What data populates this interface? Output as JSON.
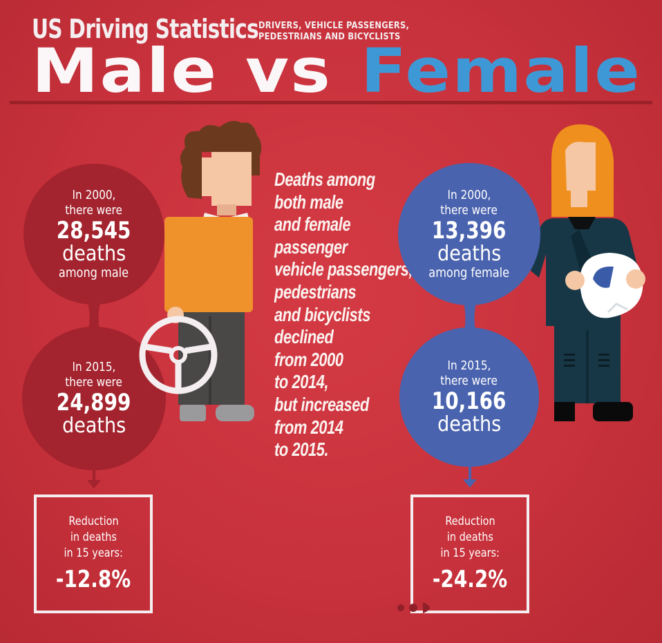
{
  "header": {
    "title": "US Driving Statistics",
    "subtitle_line1": "DRIVERS, VEHICLE PASSENGERS,",
    "subtitle_line2": "PEDESTRIANS  AND BICYCLISTS",
    "male": "Male",
    "vs": "vs",
    "female": "Female"
  },
  "male": {
    "y2000_line1": "In 2000,",
    "y2000_line2": "there were",
    "y2000_number": "28,545",
    "y2000_deaths": "deaths",
    "y2000_among": "among male",
    "y2015_line1": "In 2015,",
    "y2015_line2": "there were",
    "y2015_number": "24,899",
    "y2015_deaths": "deaths",
    "reduction_line1": "Reduction",
    "reduction_line2": "in deaths",
    "reduction_line3": "in 15 years:",
    "reduction_value": "-12.8%"
  },
  "female": {
    "y2000_line1": "In 2000,",
    "y2000_line2": "there were",
    "y2000_number": "13,396",
    "y2000_deaths": "deaths",
    "y2000_among": "among female",
    "y2015_line1": "In 2015,",
    "y2015_line2": "there were",
    "y2015_number": "10,166",
    "y2015_deaths": "deaths",
    "reduction_line1": "Reduction",
    "reduction_line2": "in deaths",
    "reduction_line3": "in 15 years:",
    "reduction_value": "-24.2%"
  },
  "middle": {
    "lines": [
      "Deaths among",
      "both male",
      "and female",
      "passenger",
      "vehicle passengers,",
      "pedestrians",
      "and bicyclists",
      "declined",
      "from 2000",
      "to 2014,",
      "but increased",
      "from 2014",
      "to 2015."
    ]
  },
  "colors": {
    "background": "#c8323c",
    "male_circle": "#a3232e",
    "female_circle": "#4a63ae",
    "female_title": "#3f98d6",
    "man_shirt": "#f0922c",
    "woman_hair": "#ef8f1e"
  },
  "icons": [
    "man-driver-illustration",
    "steering-wheel-icon",
    "woman-rider-illustration",
    "helmet-icon"
  ]
}
